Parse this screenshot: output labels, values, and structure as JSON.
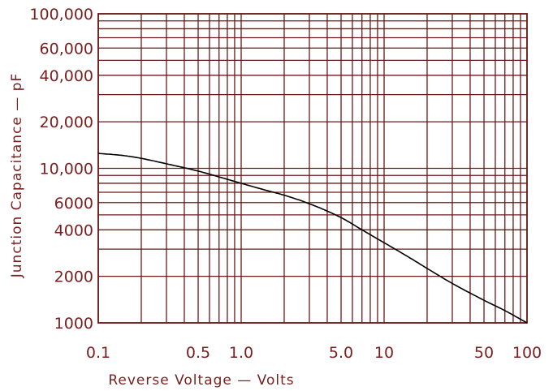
{
  "colors": {
    "grid": "#6b1a1a",
    "text": "#7a1f1f",
    "curve": "#000000",
    "background": "#ffffff"
  },
  "chart_data": {
    "type": "line",
    "xlabel": "Reverse Voltage — Volts",
    "ylabel": "Junction Capacitance — pF",
    "x_scale": "log",
    "y_scale": "log",
    "xlim": [
      0.1,
      100
    ],
    "ylim": [
      1000,
      100000
    ],
    "grid": true,
    "x_ticks": [
      {
        "value": 0.1,
        "label": "0.1"
      },
      {
        "value": 0.5,
        "label": "0.5"
      },
      {
        "value": 1,
        "label": "1.0"
      },
      {
        "value": 5,
        "label": "5.0"
      },
      {
        "value": 10,
        "label": "10"
      },
      {
        "value": 50,
        "label": "50"
      },
      {
        "value": 100,
        "label": "100"
      }
    ],
    "y_ticks": [
      {
        "value": 1000,
        "label": "1000"
      },
      {
        "value": 2000,
        "label": "2000"
      },
      {
        "value": 4000,
        "label": "4000"
      },
      {
        "value": 6000,
        "label": "6000"
      },
      {
        "value": 10000,
        "label": "10,000"
      },
      {
        "value": 20000,
        "label": "20,000"
      },
      {
        "value": 40000,
        "label": "40,000"
      },
      {
        "value": 60000,
        "label": "60,000"
      },
      {
        "value": 100000,
        "label": "100,000"
      }
    ],
    "x_gridlines": [
      0.1,
      0.2,
      0.3,
      0.4,
      0.5,
      0.6,
      0.7,
      0.8,
      0.9,
      1,
      2,
      3,
      4,
      5,
      6,
      7,
      8,
      9,
      10,
      20,
      30,
      40,
      50,
      60,
      70,
      80,
      90,
      100
    ],
    "y_gridlines": [
      1000,
      2000,
      3000,
      4000,
      5000,
      6000,
      7000,
      8000,
      9000,
      10000,
      20000,
      30000,
      40000,
      50000,
      60000,
      70000,
      80000,
      90000,
      100000
    ],
    "series": [
      {
        "x": [
          0.1,
          0.15,
          0.2,
          0.3,
          0.5,
          0.7,
          1,
          1.5,
          2,
          3,
          5,
          7,
          10,
          15,
          20,
          30,
          50,
          70,
          100
        ],
        "values": [
          12500,
          12100,
          11600,
          10700,
          9600,
          8800,
          8000,
          7200,
          6700,
          5900,
          4800,
          4000,
          3300,
          2650,
          2250,
          1800,
          1400,
          1200,
          1000
        ]
      }
    ]
  }
}
